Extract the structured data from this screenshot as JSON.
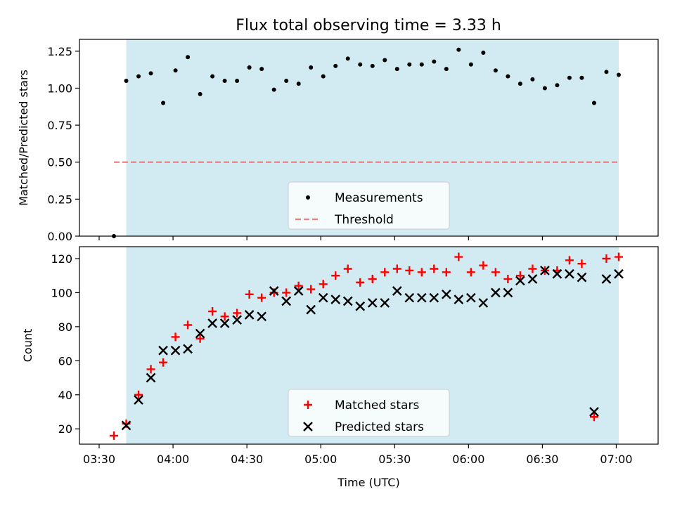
{
  "chart_data": [
    {
      "type": "scatter",
      "title": "Flux total observing time = 3.33 h",
      "xlabel": "",
      "ylabel": "Matched/Predicted stars",
      "ylim": [
        0.0,
        1.33
      ],
      "yticks": [
        "0.00",
        "0.25",
        "0.50",
        "0.75",
        "1.00",
        "1.25"
      ],
      "shaded_time_range": [
        "03:41",
        "07:01"
      ],
      "shaded_color": "#add8e6",
      "legend": {
        "position": "bottom-center",
        "entries": [
          "Measurements",
          "Threshold"
        ]
      },
      "threshold": {
        "name": "Threshold",
        "value": 0.5,
        "x_range": [
          "03:36",
          "07:01"
        ],
        "color": "#f08080",
        "style": "dashed"
      },
      "series": [
        {
          "name": "Measurements",
          "color": "#000000",
          "x": [
            "03:36",
            "03:41",
            "03:46",
            "03:51",
            "03:56",
            "04:01",
            "04:06",
            "04:11",
            "04:16",
            "04:21",
            "04:26",
            "04:31",
            "04:36",
            "04:41",
            "04:46",
            "04:51",
            "04:56",
            "05:01",
            "05:06",
            "05:11",
            "05:16",
            "05:21",
            "05:26",
            "05:31",
            "05:36",
            "05:41",
            "05:46",
            "05:51",
            "05:56",
            "06:01",
            "06:06",
            "06:11",
            "06:16",
            "06:21",
            "06:26",
            "06:31",
            "06:36",
            "06:41",
            "06:46",
            "06:51",
            "06:56",
            "07:01"
          ],
          "y": [
            0.0,
            1.05,
            1.08,
            1.1,
            0.9,
            1.12,
            1.21,
            0.96,
            1.08,
            1.05,
            1.05,
            1.14,
            1.13,
            0.99,
            1.05,
            1.03,
            1.14,
            1.08,
            1.15,
            1.2,
            1.16,
            1.15,
            1.19,
            1.13,
            1.16,
            1.16,
            1.18,
            1.13,
            1.26,
            1.16,
            1.24,
            1.12,
            1.08,
            1.03,
            1.06,
            1.0,
            1.02,
            1.07,
            1.07,
            0.9,
            1.11,
            1.09
          ]
        }
      ]
    },
    {
      "type": "scatter",
      "title": "",
      "xlabel": "Time (UTC)",
      "ylabel": "Count",
      "ylim": [
        11,
        127
      ],
      "yticks": [
        "20",
        "40",
        "60",
        "80",
        "100",
        "120"
      ],
      "xlim": [
        "03:22",
        "07:17"
      ],
      "xticks": [
        "03:30",
        "04:00",
        "04:30",
        "05:00",
        "05:30",
        "06:00",
        "06:30",
        "07:00"
      ],
      "shaded_time_range": [
        "03:41",
        "07:01"
      ],
      "shaded_color": "#add8e6",
      "legend": {
        "position": "bottom-center",
        "entries": [
          "Matched stars",
          "Predicted stars"
        ]
      },
      "series": [
        {
          "name": "Matched stars",
          "color": "#ff0000",
          "marker": "+",
          "x": [
            "03:36",
            "03:41",
            "03:46",
            "03:51",
            "03:56",
            "04:01",
            "04:06",
            "04:11",
            "04:16",
            "04:21",
            "04:26",
            "04:31",
            "04:36",
            "04:41",
            "04:46",
            "04:51",
            "04:56",
            "05:01",
            "05:06",
            "05:11",
            "05:16",
            "05:21",
            "05:26",
            "05:31",
            "05:36",
            "05:41",
            "05:46",
            "05:51",
            "05:56",
            "06:01",
            "06:06",
            "06:11",
            "06:16",
            "06:21",
            "06:26",
            "06:31",
            "06:36",
            "06:41",
            "06:46",
            "06:51",
            "06:56",
            "07:01"
          ],
          "y": [
            16,
            23,
            40,
            55,
            59,
            74,
            81,
            73,
            89,
            86,
            88,
            99,
            97,
            100,
            100,
            104,
            102,
            105,
            110,
            114,
            106,
            108,
            112,
            114,
            113,
            112,
            114,
            112,
            121,
            112,
            116,
            112,
            108,
            110,
            114,
            113,
            113,
            119,
            117,
            27,
            120,
            121
          ]
        },
        {
          "name": "Predicted stars",
          "color": "#000000",
          "marker": "x",
          "x": [
            "03:41",
            "03:46",
            "03:51",
            "03:56",
            "04:01",
            "04:06",
            "04:11",
            "04:16",
            "04:21",
            "04:26",
            "04:31",
            "04:36",
            "04:41",
            "04:46",
            "04:51",
            "04:56",
            "05:01",
            "05:06",
            "05:11",
            "05:16",
            "05:21",
            "05:26",
            "05:31",
            "05:36",
            "05:41",
            "05:46",
            "05:51",
            "05:56",
            "06:01",
            "06:06",
            "06:11",
            "06:16",
            "06:21",
            "06:26",
            "06:31",
            "06:36",
            "06:41",
            "06:46",
            "06:51",
            "06:56",
            "07:01"
          ],
          "y": [
            22,
            37,
            50,
            66,
            66,
            67,
            76,
            82,
            82,
            84,
            87,
            86,
            101,
            95,
            101,
            90,
            97,
            96,
            95,
            92,
            94,
            94,
            101,
            97,
            97,
            97,
            99,
            96,
            97,
            94,
            100,
            100,
            107,
            108,
            113,
            111,
            111,
            109,
            30,
            108,
            111
          ]
        }
      ]
    }
  ]
}
